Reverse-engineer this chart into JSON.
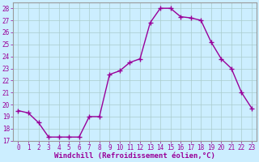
{
  "x": [
    0,
    1,
    2,
    3,
    4,
    5,
    6,
    7,
    8,
    9,
    10,
    11,
    12,
    13,
    14,
    15,
    16,
    17,
    18,
    19,
    20,
    21,
    22,
    23
  ],
  "y": [
    19.5,
    19.3,
    18.5,
    17.3,
    17.3,
    17.3,
    17.3,
    19.0,
    19.0,
    22.5,
    22.8,
    23.5,
    23.8,
    26.8,
    28.0,
    28.0,
    27.3,
    27.2,
    27.0,
    25.2,
    23.8,
    23.0,
    21.0,
    19.7
  ],
  "line_color": "#990099",
  "marker": "+",
  "marker_size": 4,
  "bg_color": "#cceeff",
  "grid_color": "#aacccc",
  "xlabel": "Windchill (Refroidissement éolien,°C)",
  "xlabel_color": "#990099",
  "xlim": [
    -0.5,
    23.5
  ],
  "ylim": [
    17,
    28.5
  ],
  "yticks": [
    17,
    18,
    19,
    20,
    21,
    22,
    23,
    24,
    25,
    26,
    27,
    28
  ],
  "xticks": [
    0,
    1,
    2,
    3,
    4,
    5,
    6,
    7,
    8,
    9,
    10,
    11,
    12,
    13,
    14,
    15,
    16,
    17,
    18,
    19,
    20,
    21,
    22,
    23
  ],
  "tick_color": "#990099",
  "tick_fontsize": 5.5,
  "xlabel_fontsize": 6.5,
  "spine_color": "#999999",
  "line_width": 1.0
}
